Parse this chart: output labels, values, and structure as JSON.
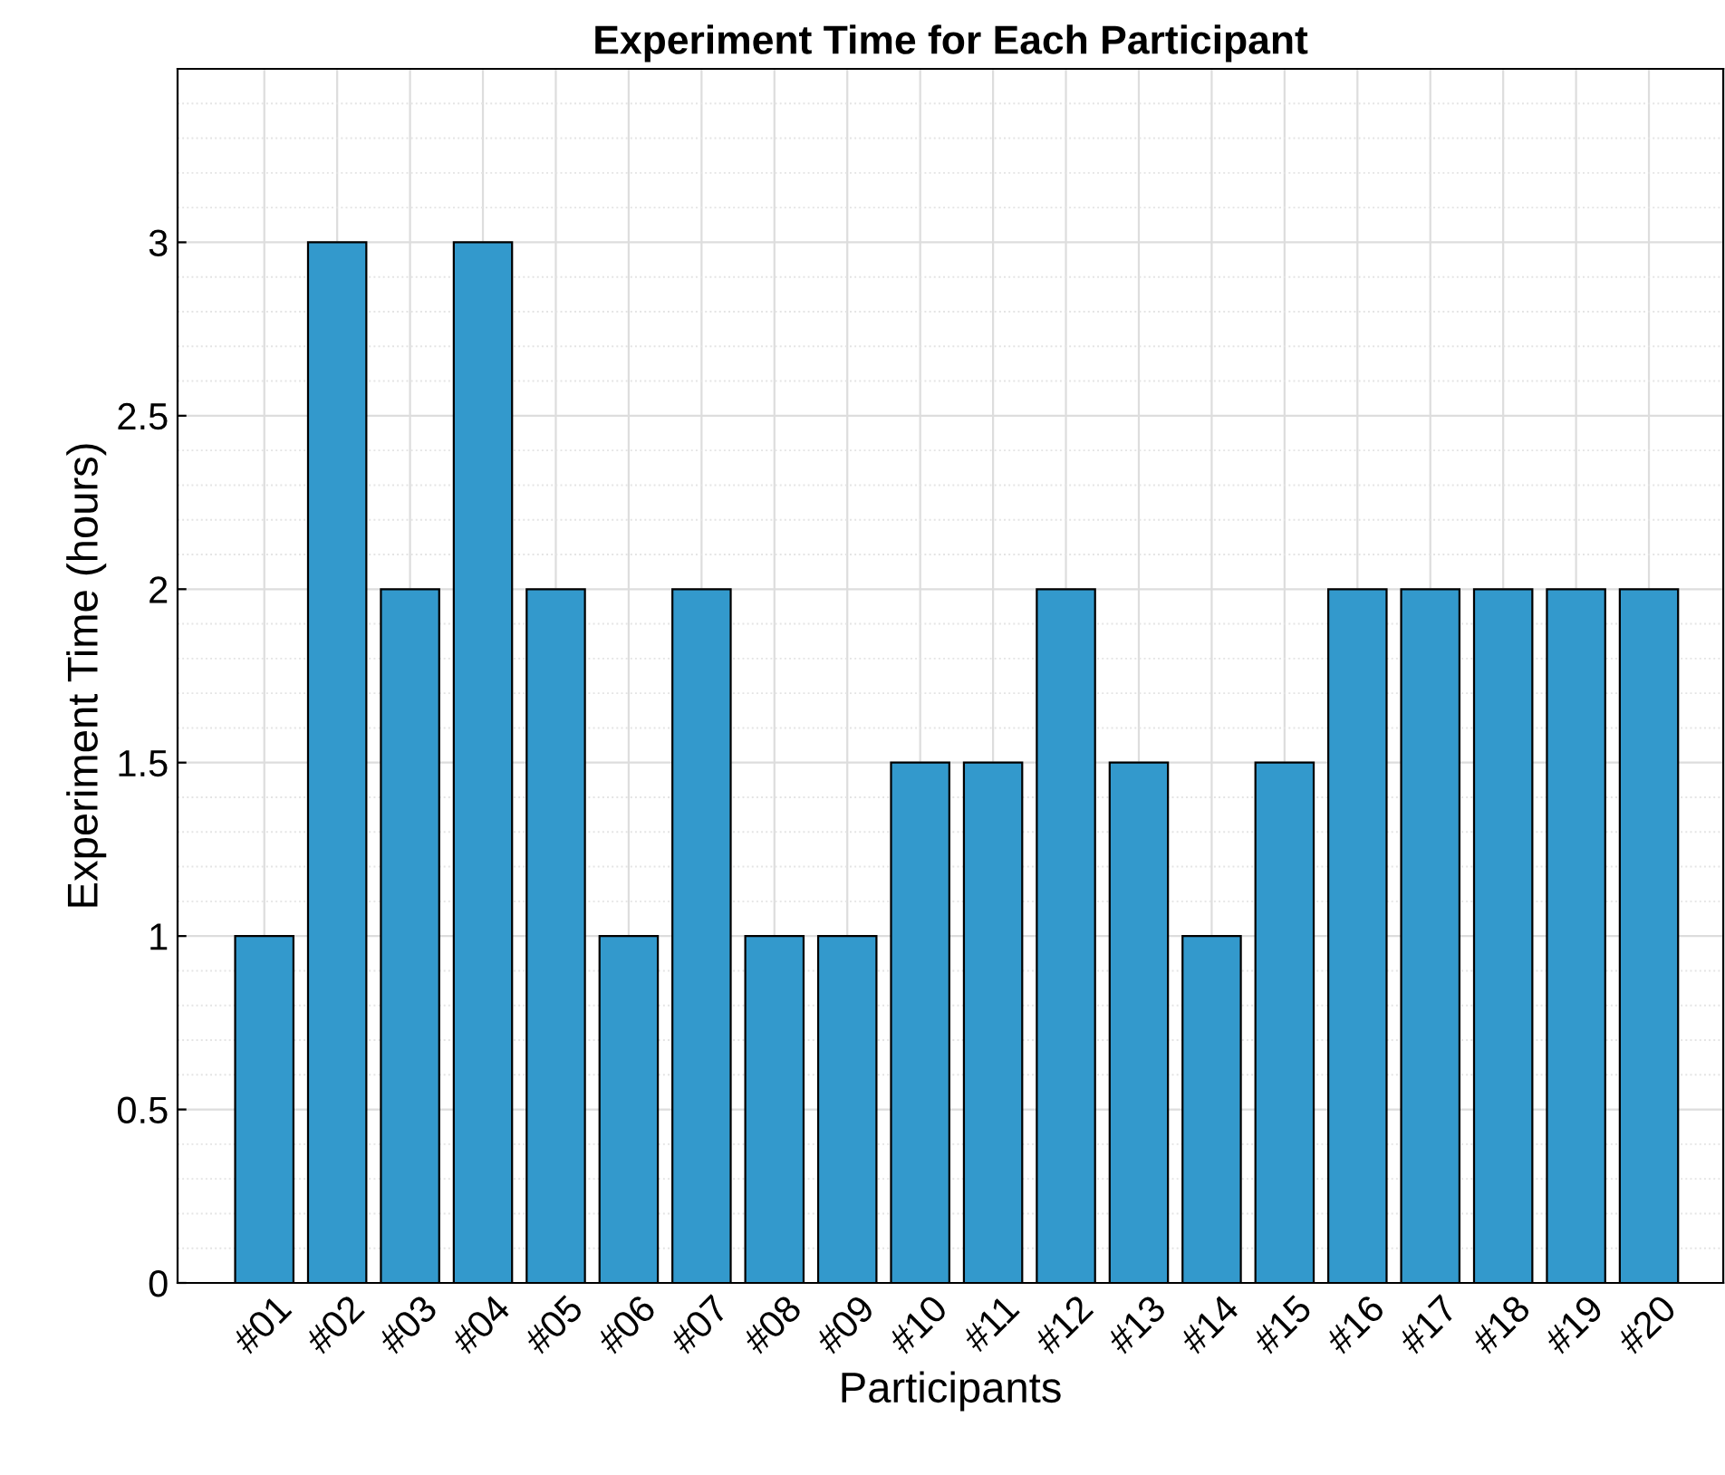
{
  "chart_data": {
    "type": "bar",
    "title": "Experiment Time for Each Participant",
    "xlabel": "Participants",
    "ylabel": "Experiment Time (hours)",
    "categories": [
      "#01",
      "#02",
      "#03",
      "#04",
      "#05",
      "#06",
      "#07",
      "#08",
      "#09",
      "#10",
      "#11",
      "#12",
      "#13",
      "#14",
      "#15",
      "#16",
      "#17",
      "#18",
      "#19",
      "#20"
    ],
    "values": [
      1,
      3,
      2,
      3,
      2,
      1,
      2,
      1,
      1,
      1.5,
      1.5,
      2,
      1.5,
      1,
      1.5,
      2,
      2,
      2,
      2,
      2
    ],
    "color": "#3399cc",
    "ylim": [
      0,
      3.5
    ],
    "yticks": [
      0,
      0.5,
      1,
      1.5,
      2,
      2.5,
      3
    ],
    "grid": true
  }
}
